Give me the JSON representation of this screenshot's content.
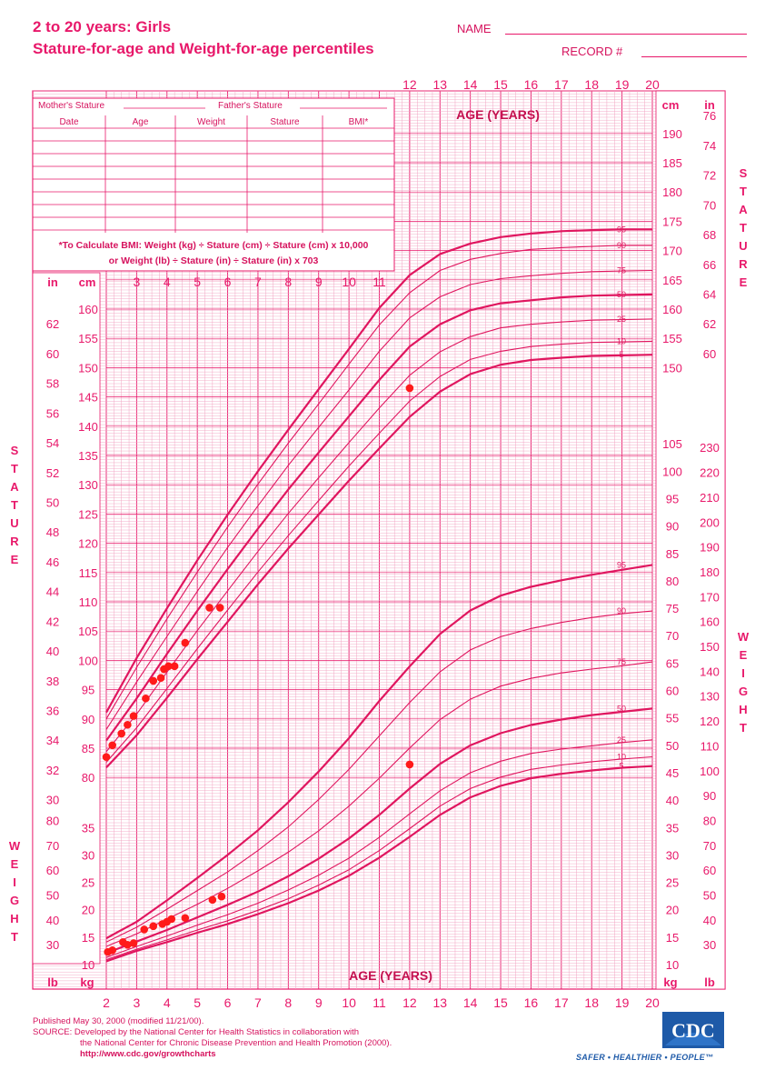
{
  "header": {
    "title_line1": "2 to 20 years: Girls",
    "title_line2": "Stature-for-age and Weight-for-age percentiles",
    "name_label": "NAME",
    "record_label": "RECORD #"
  },
  "record_table": {
    "mothers_stature": "Mother's Stature",
    "fathers_stature": "Father's Stature",
    "columns": [
      "Date",
      "Age",
      "Weight",
      "Stature",
      "BMI*"
    ],
    "bmi_note_line1": "*To Calculate BMI: Weight (kg) ÷ Stature (cm) ÷ Stature (cm) x 10,000",
    "bmi_note_line2": "or Weight (lb) ÷ Stature (in) ÷ Stature (in) x 703"
  },
  "footer": {
    "published": "Published May 30, 2000 (modified 11/21/00).",
    "source_line1": "SOURCE: Developed by the National Center for Health Statistics in collaboration with",
    "source_line2": "the National Center for Chronic Disease Prevention and Health Promotion (2000).",
    "url": "http://www.cdc.gov/growthcharts",
    "logo_text": "CDC",
    "slogan": "SAFER • HEALTHIER • PEOPLE™"
  },
  "colors": {
    "grid": "#f2a3c2",
    "grid_major": "#e8186a",
    "curve": "#e0165f",
    "point": "#ff1a1a",
    "logo": "#1e5aa8"
  },
  "chart_data": [
    {
      "type": "line",
      "name": "Stature-for-age",
      "xlabel": "AGE (YEARS)",
      "ylabel": "STATURE",
      "x_ticks": [
        2,
        3,
        4,
        5,
        6,
        7,
        8,
        9,
        10,
        11,
        12,
        13,
        14,
        15,
        16,
        17,
        18,
        19,
        20
      ],
      "y_unit_left": "cm",
      "y_unit_right": "in",
      "ylim_cm": [
        77,
        197
      ],
      "x": [
        2,
        3,
        4,
        5,
        6,
        7,
        8,
        9,
        10,
        11,
        12,
        13,
        14,
        15,
        16,
        17,
        18,
        19,
        20
      ],
      "series": [
        {
          "name": "95",
          "values": [
            91.1,
            100.4,
            108.9,
            117.1,
            124.9,
            132.3,
            139.4,
            146.3,
            153.2,
            160.2,
            165.8,
            169.4,
            171.2,
            172.3,
            172.9,
            173.3,
            173.5,
            173.6,
            173.6
          ]
        },
        {
          "name": "90",
          "values": [
            90,
            98.8,
            107.1,
            115.1,
            122.8,
            130.1,
            137.1,
            143.8,
            150.6,
            157.3,
            162.8,
            166.6,
            168.5,
            169.5,
            170.2,
            170.5,
            170.7,
            170.9,
            170.9
          ]
        },
        {
          "name": "75",
          "values": [
            88.2,
            96.3,
            104.1,
            111.8,
            119.3,
            126.4,
            133.3,
            139.8,
            146.2,
            152.8,
            158.5,
            162.1,
            164.2,
            165.2,
            165.7,
            166.1,
            166.4,
            166.5,
            166.6
          ]
        },
        {
          "name": "50",
          "values": [
            86.3,
            93.5,
            101.1,
            108.5,
            115.6,
            122.5,
            129.2,
            135.5,
            141.7,
            147.9,
            153.6,
            157.4,
            159.8,
            161,
            161.5,
            162,
            162.3,
            162.4,
            162.5
          ]
        },
        {
          "name": "25",
          "values": [
            84.4,
            90.8,
            98,
            105.1,
            111.9,
            118.6,
            125.1,
            131.2,
            137.2,
            143.1,
            148.7,
            152.7,
            155.3,
            156.8,
            157.4,
            157.8,
            158.1,
            158.2,
            158.3
          ]
        },
        {
          "name": "10",
          "values": [
            82.6,
            88.5,
            95.2,
            102,
            108.6,
            115.1,
            121.3,
            127.3,
            133.2,
            138.8,
            144.3,
            148.5,
            151.4,
            152.8,
            153.6,
            154,
            154.3,
            154.4,
            154.5
          ]
        },
        {
          "name": "5",
          "values": [
            81.7,
            87.2,
            93.6,
            100.2,
            106.6,
            113,
            119.1,
            124.9,
            130.7,
            136.2,
            141.6,
            145.9,
            148.9,
            150.5,
            151.3,
            151.7,
            152,
            152.1,
            152.2
          ]
        }
      ],
      "patient_points": [
        {
          "age": 2.0,
          "cm": 83.5
        },
        {
          "age": 2.2,
          "cm": 85.5
        },
        {
          "age": 2.5,
          "cm": 87.5
        },
        {
          "age": 2.7,
          "cm": 89
        },
        {
          "age": 2.9,
          "cm": 90.5
        },
        {
          "age": 3.3,
          "cm": 93.5
        },
        {
          "age": 3.55,
          "cm": 96.5
        },
        {
          "age": 3.8,
          "cm": 97
        },
        {
          "age": 3.9,
          "cm": 98.5
        },
        {
          "age": 4.05,
          "cm": 99
        },
        {
          "age": 4.25,
          "cm": 99
        },
        {
          "age": 4.6,
          "cm": 103
        },
        {
          "age": 5.4,
          "cm": 109
        },
        {
          "age": 5.75,
          "cm": 109
        },
        {
          "age": 12.0,
          "cm": 146.5
        }
      ]
    },
    {
      "type": "line",
      "name": "Weight-for-age",
      "xlabel": "AGE (YEARS)",
      "ylabel": "WEIGHT",
      "x_ticks": [
        2,
        3,
        4,
        5,
        6,
        7,
        8,
        9,
        10,
        11,
        12,
        13,
        14,
        15,
        16,
        17,
        18,
        19,
        20
      ],
      "y_unit_left": "kg",
      "y_unit_right": "lb",
      "ylim_kg": [
        8,
        105
      ],
      "x": [
        2,
        3,
        4,
        5,
        6,
        7,
        8,
        9,
        10,
        11,
        12,
        13,
        14,
        15,
        16,
        17,
        18,
        19,
        20
      ],
      "series": [
        {
          "name": "95",
          "values": [
            14.8,
            17.8,
            21.7,
            25.8,
            30,
            34.5,
            39.6,
            45.2,
            51.3,
            58.1,
            64.4,
            70.3,
            74.6,
            77.3,
            78.9,
            80.1,
            81.1,
            82,
            82.9
          ]
        },
        {
          "name": "90",
          "values": [
            14.1,
            16.8,
            20.1,
            23.5,
            26.9,
            30.8,
            35.1,
            40.1,
            45.6,
            51.7,
            57.8,
            63.4,
            67.4,
            69.8,
            71.3,
            72.4,
            73.3,
            74,
            74.5
          ]
        },
        {
          "name": "75",
          "values": [
            13.3,
            15.6,
            18.3,
            21,
            23.9,
            27.1,
            30.5,
            34.4,
            38.9,
            44,
            49.5,
            54.7,
            58.4,
            60.8,
            62.2,
            63.2,
            63.9,
            64.5,
            65.2
          ]
        },
        {
          "name": "50",
          "values": [
            12.1,
            14.2,
            16.3,
            18.6,
            20.9,
            23.3,
            26.1,
            29.3,
            33,
            37.3,
            42.1,
            46.6,
            50,
            52.2,
            53.7,
            54.7,
            55.5,
            56.1,
            56.7
          ]
        },
        {
          "name": "25",
          "values": [
            11.3,
            13.3,
            15.2,
            17.2,
            19.1,
            21.2,
            23.6,
            26.3,
            29.4,
            33.2,
            37.5,
            41.7,
            45,
            47.1,
            48.5,
            49.3,
            49.9,
            50.5,
            51
          ]
        },
        {
          "name": "10",
          "values": [
            10.9,
            12.8,
            14.5,
            16.3,
            18,
            19.9,
            22,
            24.5,
            27.3,
            30.8,
            34.8,
            38.9,
            42.1,
            44.2,
            45.6,
            46.4,
            47,
            47.5,
            47.9
          ]
        },
        {
          "name": "5",
          "values": [
            10.6,
            12.5,
            14.1,
            15.8,
            17.4,
            19.2,
            21.2,
            23.5,
            26.2,
            29.5,
            33.3,
            37.3,
            40.5,
            42.6,
            44,
            44.8,
            45.4,
            45.9,
            46.2
          ]
        }
      ],
      "patient_points": [
        {
          "age": 2.05,
          "kg": 12.3
        },
        {
          "age": 2.2,
          "kg": 12.6
        },
        {
          "age": 2.55,
          "kg": 14.1
        },
        {
          "age": 2.7,
          "kg": 13.6
        },
        {
          "age": 2.9,
          "kg": 13.9
        },
        {
          "age": 3.25,
          "kg": 16.4
        },
        {
          "age": 3.55,
          "kg": 17
        },
        {
          "age": 3.85,
          "kg": 17.4
        },
        {
          "age": 4.0,
          "kg": 17.8
        },
        {
          "age": 4.15,
          "kg": 18.3
        },
        {
          "age": 4.6,
          "kg": 18.5
        },
        {
          "age": 5.5,
          "kg": 21.8
        },
        {
          "age": 5.8,
          "kg": 22.4
        },
        {
          "age": 12.0,
          "kg": 46.5
        }
      ]
    }
  ]
}
